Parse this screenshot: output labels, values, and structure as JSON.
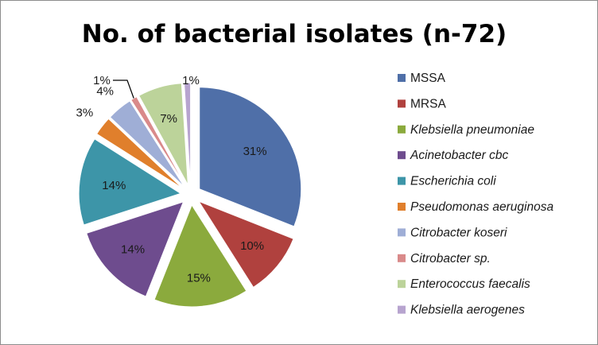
{
  "chart_data": {
    "type": "pie",
    "title": "No. of bacterial isolates (n-72)",
    "slices": [
      {
        "name": "MSSA",
        "value": 31,
        "label": "31%",
        "color": "#4F6FA8",
        "italic": false
      },
      {
        "name": "MRSA",
        "value": 10,
        "label": "10%",
        "color": "#B0413E",
        "italic": false
      },
      {
        "name": "Klebsiella pneumoniae",
        "value": 15,
        "label": "15%",
        "color": "#8BAA3D",
        "italic": true
      },
      {
        "name": "Acinetobacter cbc",
        "value": 14,
        "label": "14%",
        "color": "#6E4C8E",
        "italic": true
      },
      {
        "name": "Escherichia coli",
        "value": 14,
        "label": "14%",
        "color": "#3D95A8",
        "italic": true
      },
      {
        "name": "Pseudomonas aeruginosa",
        "value": 3,
        "label": "3%",
        "color": "#E07F2C",
        "italic": true
      },
      {
        "name": "Citrobacter koseri",
        "value": 4,
        "label": "4%",
        "color": "#9FAED6",
        "italic": true
      },
      {
        "name": "Citrobacter sp.",
        "value": 1,
        "label": "1%",
        "color": "#D98A8A",
        "italic": true
      },
      {
        "name": "Enterococcus faecalis",
        "value": 7,
        "label": "7%",
        "color": "#BCD39A",
        "italic": true
      },
      {
        "name": "Klebsiella aerogenes",
        "value": 1,
        "label": "1%",
        "color": "#B7A4CF",
        "italic": true
      }
    ],
    "legend_position": "right",
    "exploded": true
  }
}
